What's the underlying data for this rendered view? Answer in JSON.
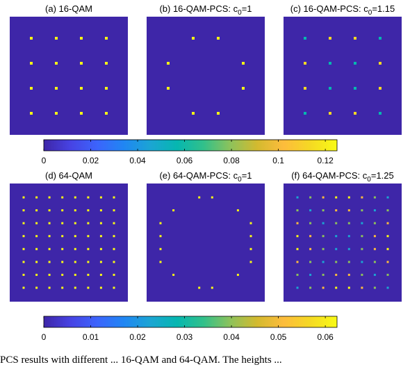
{
  "figure": {
    "caption_fragment": "PCS results with different ... 16-QAM and 64-QAM. The heights ..."
  },
  "chart_data": [
    {
      "type": "heatmap",
      "id": "a",
      "title": "(a) 16-QAM",
      "grid": 4,
      "color_scale": "cb1",
      "points": [
        {
          "row": 0,
          "col": 0,
          "value": 0.125
        },
        {
          "row": 0,
          "col": 1,
          "value": 0.125
        },
        {
          "row": 0,
          "col": 2,
          "value": 0.125
        },
        {
          "row": 0,
          "col": 3,
          "value": 0.125
        },
        {
          "row": 1,
          "col": 0,
          "value": 0.125
        },
        {
          "row": 1,
          "col": 1,
          "value": 0.125
        },
        {
          "row": 1,
          "col": 2,
          "value": 0.125
        },
        {
          "row": 1,
          "col": 3,
          "value": 0.125
        },
        {
          "row": 2,
          "col": 0,
          "value": 0.125
        },
        {
          "row": 2,
          "col": 1,
          "value": 0.125
        },
        {
          "row": 2,
          "col": 2,
          "value": 0.125
        },
        {
          "row": 2,
          "col": 3,
          "value": 0.125
        },
        {
          "row": 3,
          "col": 0,
          "value": 0.125
        },
        {
          "row": 3,
          "col": 1,
          "value": 0.125
        },
        {
          "row": 3,
          "col": 2,
          "value": 0.125
        },
        {
          "row": 3,
          "col": 3,
          "value": 0.125
        }
      ]
    },
    {
      "type": "heatmap",
      "id": "b",
      "title": "(b) 16-QAM-PCS: c",
      "title_sub": "0",
      "title_suffix": "=1",
      "grid": 4,
      "color_scale": "cb1",
      "points": [
        {
          "row": 0,
          "col": 1,
          "value": 0.125
        },
        {
          "row": 0,
          "col": 2,
          "value": 0.125
        },
        {
          "row": 1,
          "col": 0,
          "value": 0.125
        },
        {
          "row": 1,
          "col": 3,
          "value": 0.125
        },
        {
          "row": 2,
          "col": 0,
          "value": 0.125
        },
        {
          "row": 2,
          "col": 3,
          "value": 0.125
        },
        {
          "row": 3,
          "col": 1,
          "value": 0.125
        },
        {
          "row": 3,
          "col": 2,
          "value": 0.125
        }
      ]
    },
    {
      "type": "heatmap",
      "id": "c",
      "title": "(c) 16-QAM-PCS: c",
      "title_sub": "0",
      "title_suffix": "=1.15",
      "grid": 4,
      "color_scale": "cb1",
      "points": [
        {
          "row": 0,
          "col": 0,
          "value": 0.06
        },
        {
          "row": 0,
          "col": 1,
          "value": 0.11
        },
        {
          "row": 0,
          "col": 2,
          "value": 0.11
        },
        {
          "row": 0,
          "col": 3,
          "value": 0.06
        },
        {
          "row": 1,
          "col": 0,
          "value": 0.11
        },
        {
          "row": 1,
          "col": 1,
          "value": 0.06
        },
        {
          "row": 1,
          "col": 2,
          "value": 0.06
        },
        {
          "row": 1,
          "col": 3,
          "value": 0.11
        },
        {
          "row": 2,
          "col": 0,
          "value": 0.11
        },
        {
          "row": 2,
          "col": 1,
          "value": 0.06
        },
        {
          "row": 2,
          "col": 2,
          "value": 0.06
        },
        {
          "row": 2,
          "col": 3,
          "value": 0.11
        },
        {
          "row": 3,
          "col": 0,
          "value": 0.06
        },
        {
          "row": 3,
          "col": 1,
          "value": 0.11
        },
        {
          "row": 3,
          "col": 2,
          "value": 0.11
        },
        {
          "row": 3,
          "col": 3,
          "value": 0.06
        }
      ]
    },
    {
      "type": "heatmap",
      "id": "d",
      "title": "(d) 64-QAM",
      "grid": 8,
      "color_scale": "cb2",
      "points": [
        {
          "row": 0,
          "col": 0,
          "value": 0.06
        },
        {
          "row": 0,
          "col": 1,
          "value": 0.06
        },
        {
          "row": 0,
          "col": 2,
          "value": 0.06
        },
        {
          "row": 0,
          "col": 3,
          "value": 0.06
        },
        {
          "row": 0,
          "col": 4,
          "value": 0.06
        },
        {
          "row": 0,
          "col": 5,
          "value": 0.06
        },
        {
          "row": 0,
          "col": 6,
          "value": 0.06
        },
        {
          "row": 0,
          "col": 7,
          "value": 0.06
        },
        {
          "row": 1,
          "col": 0,
          "value": 0.06
        },
        {
          "row": 1,
          "col": 1,
          "value": 0.06
        },
        {
          "row": 1,
          "col": 2,
          "value": 0.06
        },
        {
          "row": 1,
          "col": 3,
          "value": 0.06
        },
        {
          "row": 1,
          "col": 4,
          "value": 0.06
        },
        {
          "row": 1,
          "col": 5,
          "value": 0.06
        },
        {
          "row": 1,
          "col": 6,
          "value": 0.06
        },
        {
          "row": 1,
          "col": 7,
          "value": 0.06
        },
        {
          "row": 2,
          "col": 0,
          "value": 0.06
        },
        {
          "row": 2,
          "col": 1,
          "value": 0.06
        },
        {
          "row": 2,
          "col": 2,
          "value": 0.06
        },
        {
          "row": 2,
          "col": 3,
          "value": 0.06
        },
        {
          "row": 2,
          "col": 4,
          "value": 0.06
        },
        {
          "row": 2,
          "col": 5,
          "value": 0.06
        },
        {
          "row": 2,
          "col": 6,
          "value": 0.06
        },
        {
          "row": 2,
          "col": 7,
          "value": 0.06
        },
        {
          "row": 3,
          "col": 0,
          "value": 0.06
        },
        {
          "row": 3,
          "col": 1,
          "value": 0.06
        },
        {
          "row": 3,
          "col": 2,
          "value": 0.06
        },
        {
          "row": 3,
          "col": 3,
          "value": 0.06
        },
        {
          "row": 3,
          "col": 4,
          "value": 0.06
        },
        {
          "row": 3,
          "col": 5,
          "value": 0.06
        },
        {
          "row": 3,
          "col": 6,
          "value": 0.06
        },
        {
          "row": 3,
          "col": 7,
          "value": 0.06
        },
        {
          "row": 4,
          "col": 0,
          "value": 0.06
        },
        {
          "row": 4,
          "col": 1,
          "value": 0.06
        },
        {
          "row": 4,
          "col": 2,
          "value": 0.06
        },
        {
          "row": 4,
          "col": 3,
          "value": 0.06
        },
        {
          "row": 4,
          "col": 4,
          "value": 0.06
        },
        {
          "row": 4,
          "col": 5,
          "value": 0.06
        },
        {
          "row": 4,
          "col": 6,
          "value": 0.06
        },
        {
          "row": 4,
          "col": 7,
          "value": 0.06
        },
        {
          "row": 5,
          "col": 0,
          "value": 0.06
        },
        {
          "row": 5,
          "col": 1,
          "value": 0.06
        },
        {
          "row": 5,
          "col": 2,
          "value": 0.06
        },
        {
          "row": 5,
          "col": 3,
          "value": 0.06
        },
        {
          "row": 5,
          "col": 4,
          "value": 0.06
        },
        {
          "row": 5,
          "col": 5,
          "value": 0.06
        },
        {
          "row": 5,
          "col": 6,
          "value": 0.06
        },
        {
          "row": 5,
          "col": 7,
          "value": 0.06
        },
        {
          "row": 6,
          "col": 0,
          "value": 0.06
        },
        {
          "row": 6,
          "col": 1,
          "value": 0.06
        },
        {
          "row": 6,
          "col": 2,
          "value": 0.06
        },
        {
          "row": 6,
          "col": 3,
          "value": 0.06
        },
        {
          "row": 6,
          "col": 4,
          "value": 0.06
        },
        {
          "row": 6,
          "col": 5,
          "value": 0.06
        },
        {
          "row": 6,
          "col": 6,
          "value": 0.06
        },
        {
          "row": 6,
          "col": 7,
          "value": 0.06
        },
        {
          "row": 7,
          "col": 0,
          "value": 0.06
        },
        {
          "row": 7,
          "col": 1,
          "value": 0.06
        },
        {
          "row": 7,
          "col": 2,
          "value": 0.06
        },
        {
          "row": 7,
          "col": 3,
          "value": 0.06
        },
        {
          "row": 7,
          "col": 4,
          "value": 0.06
        },
        {
          "row": 7,
          "col": 5,
          "value": 0.06
        },
        {
          "row": 7,
          "col": 6,
          "value": 0.06
        },
        {
          "row": 7,
          "col": 7,
          "value": 0.06
        }
      ]
    },
    {
      "type": "heatmap",
      "id": "e",
      "title": "(e) 64-QAM-PCS: c",
      "title_sub": "0",
      "title_suffix": "=1",
      "grid": 8,
      "color_scale": "cb2",
      "points": [
        {
          "row": 0,
          "col": 3,
          "value": 0.06
        },
        {
          "row": 0,
          "col": 4,
          "value": 0.06
        },
        {
          "row": 1,
          "col": 1,
          "value": 0.06
        },
        {
          "row": 1,
          "col": 6,
          "value": 0.06
        },
        {
          "row": 2,
          "col": 0,
          "value": 0.06
        },
        {
          "row": 2,
          "col": 7,
          "value": 0.06
        },
        {
          "row": 3,
          "col": 0,
          "value": 0.06
        },
        {
          "row": 3,
          "col": 7,
          "value": 0.06
        },
        {
          "row": 4,
          "col": 0,
          "value": 0.06
        },
        {
          "row": 4,
          "col": 7,
          "value": 0.06
        },
        {
          "row": 5,
          "col": 0,
          "value": 0.06
        },
        {
          "row": 5,
          "col": 7,
          "value": 0.06
        },
        {
          "row": 6,
          "col": 1,
          "value": 0.06
        },
        {
          "row": 6,
          "col": 6,
          "value": 0.06
        },
        {
          "row": 7,
          "col": 3,
          "value": 0.06
        },
        {
          "row": 7,
          "col": 4,
          "value": 0.06
        }
      ]
    },
    {
      "type": "heatmap",
      "id": "f",
      "title": "(f) 64-QAM-PCS: c",
      "title_sub": "0",
      "title_suffix": "=1.25",
      "grid": 8,
      "color_scale": "cb2",
      "points": [
        {
          "row": 0,
          "col": 0,
          "value": 0.02
        },
        {
          "row": 0,
          "col": 1,
          "value": 0.04
        },
        {
          "row": 0,
          "col": 2,
          "value": 0.05
        },
        {
          "row": 0,
          "col": 3,
          "value": 0.06
        },
        {
          "row": 0,
          "col": 4,
          "value": 0.06
        },
        {
          "row": 0,
          "col": 5,
          "value": 0.05
        },
        {
          "row": 0,
          "col": 6,
          "value": 0.04
        },
        {
          "row": 0,
          "col": 7,
          "value": 0.02
        },
        {
          "row": 1,
          "col": 0,
          "value": 0.04
        },
        {
          "row": 1,
          "col": 1,
          "value": 0.02
        },
        {
          "row": 1,
          "col": 2,
          "value": 0.04
        },
        {
          "row": 1,
          "col": 3,
          "value": 0.05
        },
        {
          "row": 1,
          "col": 4,
          "value": 0.05
        },
        {
          "row": 1,
          "col": 5,
          "value": 0.04
        },
        {
          "row": 1,
          "col": 6,
          "value": 0.02
        },
        {
          "row": 1,
          "col": 7,
          "value": 0.04
        },
        {
          "row": 2,
          "col": 0,
          "value": 0.05
        },
        {
          "row": 2,
          "col": 1,
          "value": 0.04
        },
        {
          "row": 2,
          "col": 2,
          "value": 0.02
        },
        {
          "row": 2,
          "col": 3,
          "value": 0.04
        },
        {
          "row": 2,
          "col": 4,
          "value": 0.04
        },
        {
          "row": 2,
          "col": 5,
          "value": 0.02
        },
        {
          "row": 2,
          "col": 6,
          "value": 0.04
        },
        {
          "row": 2,
          "col": 7,
          "value": 0.05
        },
        {
          "row": 3,
          "col": 0,
          "value": 0.06
        },
        {
          "row": 3,
          "col": 1,
          "value": 0.05
        },
        {
          "row": 3,
          "col": 2,
          "value": 0.04
        },
        {
          "row": 3,
          "col": 3,
          "value": 0.02
        },
        {
          "row": 3,
          "col": 4,
          "value": 0.02
        },
        {
          "row": 3,
          "col": 5,
          "value": 0.04
        },
        {
          "row": 3,
          "col": 6,
          "value": 0.05
        },
        {
          "row": 3,
          "col": 7,
          "value": 0.06
        },
        {
          "row": 4,
          "col": 0,
          "value": 0.06
        },
        {
          "row": 4,
          "col": 1,
          "value": 0.05
        },
        {
          "row": 4,
          "col": 2,
          "value": 0.04
        },
        {
          "row": 4,
          "col": 3,
          "value": 0.02
        },
        {
          "row": 4,
          "col": 4,
          "value": 0.02
        },
        {
          "row": 4,
          "col": 5,
          "value": 0.04
        },
        {
          "row": 4,
          "col": 6,
          "value": 0.05
        },
        {
          "row": 4,
          "col": 7,
          "value": 0.06
        },
        {
          "row": 5,
          "col": 0,
          "value": 0.05
        },
        {
          "row": 5,
          "col": 1,
          "value": 0.04
        },
        {
          "row": 5,
          "col": 2,
          "value": 0.02
        },
        {
          "row": 5,
          "col": 3,
          "value": 0.04
        },
        {
          "row": 5,
          "col": 4,
          "value": 0.04
        },
        {
          "row": 5,
          "col": 5,
          "value": 0.02
        },
        {
          "row": 5,
          "col": 6,
          "value": 0.04
        },
        {
          "row": 5,
          "col": 7,
          "value": 0.05
        },
        {
          "row": 6,
          "col": 0,
          "value": 0.04
        },
        {
          "row": 6,
          "col": 1,
          "value": 0.02
        },
        {
          "row": 6,
          "col": 2,
          "value": 0.04
        },
        {
          "row": 6,
          "col": 3,
          "value": 0.05
        },
        {
          "row": 6,
          "col": 4,
          "value": 0.05
        },
        {
          "row": 6,
          "col": 5,
          "value": 0.04
        },
        {
          "row": 6,
          "col": 6,
          "value": 0.02
        },
        {
          "row": 6,
          "col": 7,
          "value": 0.04
        },
        {
          "row": 7,
          "col": 0,
          "value": 0.02
        },
        {
          "row": 7,
          "col": 1,
          "value": 0.04
        },
        {
          "row": 7,
          "col": 2,
          "value": 0.05
        },
        {
          "row": 7,
          "col": 3,
          "value": 0.06
        },
        {
          "row": 7,
          "col": 4,
          "value": 0.06
        },
        {
          "row": 7,
          "col": 5,
          "value": 0.05
        },
        {
          "row": 7,
          "col": 6,
          "value": 0.04
        },
        {
          "row": 7,
          "col": 7,
          "value": 0.02
        }
      ]
    }
  ],
  "colorbars": {
    "cb1": {
      "range": [
        0,
        0.125
      ],
      "ticks": [
        0,
        0.02,
        0.04,
        0.06,
        0.08,
        0.1,
        0.12
      ],
      "tick_labels": [
        "0",
        "0.02",
        "0.04",
        "0.06",
        "0.08",
        "0.1",
        "0.12"
      ]
    },
    "cb2": {
      "range": [
        0,
        0.0625
      ],
      "ticks": [
        0,
        0.01,
        0.02,
        0.03,
        0.04,
        0.05,
        0.06
      ],
      "tick_labels": [
        "0",
        "0.01",
        "0.02",
        "0.03",
        "0.04",
        "0.05",
        "0.06"
      ]
    }
  },
  "colormap": [
    "#3e26a8",
    "#4743e3",
    "#3c64fc",
    "#2086f3",
    "#1ba5d3",
    "#06b7b0",
    "#32c08a",
    "#8dc25b",
    "#d3ba2f",
    "#fdbc3c",
    "#f5d923",
    "#f9fb15"
  ]
}
